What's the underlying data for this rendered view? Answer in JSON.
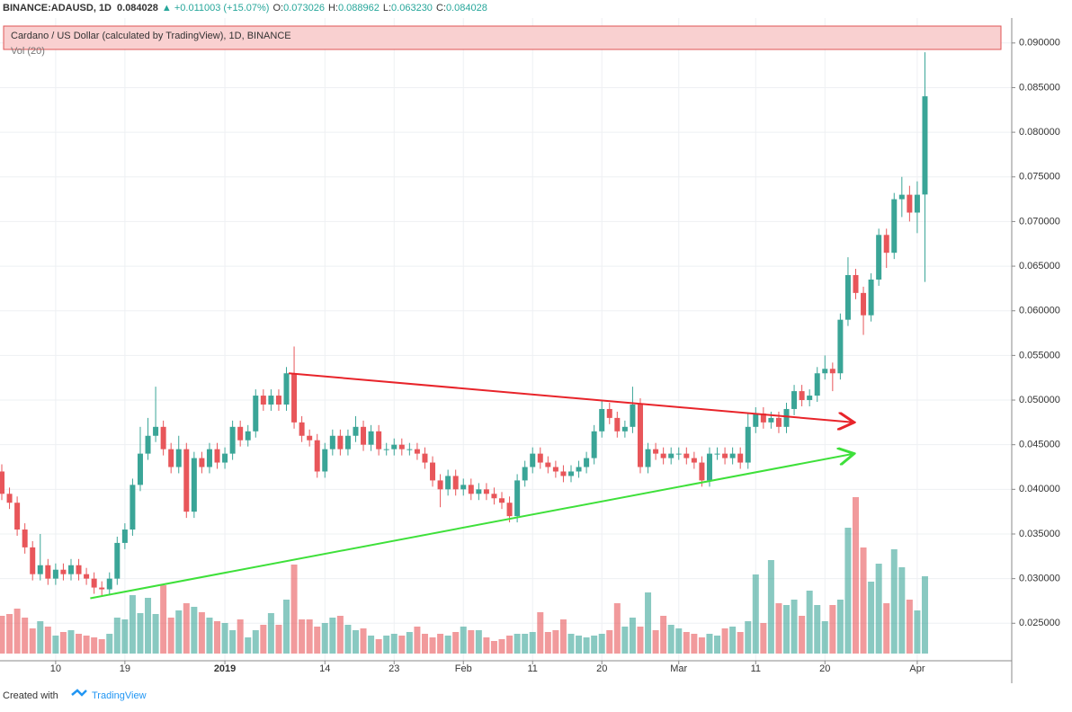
{
  "header": {
    "symbol": "BINANCE:ADAUSD, 1D",
    "last": "0.084028",
    "change": "▲ +0.011003 (+15.07%)",
    "ohlc": [
      {
        "label": "O:",
        "value": "0.073026"
      },
      {
        "label": "H:",
        "value": "0.088962"
      },
      {
        "label": "L:",
        "value": "0.063230"
      },
      {
        "label": "C:",
        "value": "0.084028"
      }
    ]
  },
  "chart_data": {
    "type": "candlestick",
    "title": "Cardano / US Dollar (calculated by TradingView), 1D, BINANCE",
    "volume_label": "Vol (20)",
    "up_color": "#3aa597",
    "down_color": "#e8565a",
    "grid": true,
    "ylim": [
      0.0208,
      0.0928
    ],
    "yticks": [
      {
        "value": 0.025,
        "label": "0.025000"
      },
      {
        "value": 0.03,
        "label": "0.030000"
      },
      {
        "value": 0.035,
        "label": "0.035000"
      },
      {
        "value": 0.04,
        "label": "0.040000"
      },
      {
        "value": 0.045,
        "label": "0.045000"
      },
      {
        "value": 0.05,
        "label": "0.050000"
      },
      {
        "value": 0.055,
        "label": "0.055000"
      },
      {
        "value": 0.06,
        "label": "0.060000"
      },
      {
        "value": 0.065,
        "label": "0.065000"
      },
      {
        "value": 0.07,
        "label": "0.070000"
      },
      {
        "value": 0.075,
        "label": "0.075000"
      },
      {
        "value": 0.08,
        "label": "0.080000"
      },
      {
        "value": 0.085,
        "label": "0.085000"
      },
      {
        "value": 0.09,
        "label": "0.090000"
      }
    ],
    "xticks": [
      {
        "value": 7,
        "label": "10"
      },
      {
        "value": 16,
        "label": "19"
      },
      {
        "value": 29,
        "label": "2019"
      },
      {
        "value": 42,
        "label": "14"
      },
      {
        "value": 51,
        "label": "23"
      },
      {
        "value": 60,
        "label": "Feb"
      },
      {
        "value": 69,
        "label": "11"
      },
      {
        "value": 78,
        "label": "20"
      },
      {
        "value": 88,
        "label": "Mar"
      },
      {
        "value": 98,
        "label": "11"
      },
      {
        "value": 107,
        "label": "20"
      },
      {
        "value": 119,
        "label": "Apr"
      }
    ],
    "open": [
      0.042,
      0.0395,
      0.0385,
      0.0355,
      0.0335,
      0.0305,
      0.0315,
      0.03,
      0.031,
      0.0305,
      0.0315,
      0.0305,
      0.03,
      0.029,
      0.0288,
      0.03,
      0.034,
      0.0355,
      0.0405,
      0.044,
      0.046,
      0.047,
      0.0445,
      0.0425,
      0.0445,
      0.0375,
      0.0435,
      0.0425,
      0.0445,
      0.043,
      0.044,
      0.047,
      0.0455,
      0.0465,
      0.0505,
      0.0495,
      0.0505,
      0.0495,
      0.053,
      0.0475,
      0.046,
      0.0455,
      0.042,
      0.0445,
      0.046,
      0.0445,
      0.046,
      0.047,
      0.045,
      0.0465,
      0.0445,
      0.0445,
      0.045,
      0.0445,
      0.0445,
      0.044,
      0.043,
      0.041,
      0.04,
      0.0415,
      0.04,
      0.0405,
      0.0395,
      0.04,
      0.0395,
      0.039,
      0.0385,
      0.037,
      0.041,
      0.0425,
      0.044,
      0.043,
      0.0425,
      0.042,
      0.0415,
      0.042,
      0.0425,
      0.0435,
      0.0465,
      0.049,
      0.048,
      0.0465,
      0.047,
      0.0495,
      0.0425,
      0.0445,
      0.044,
      0.0435,
      0.044,
      0.044,
      0.0435,
      0.043,
      0.041,
      0.044,
      0.044,
      0.0435,
      0.044,
      0.043,
      0.047,
      0.0485,
      0.0475,
      0.048,
      0.047,
      0.049,
      0.051,
      0.05,
      0.0505,
      0.053,
      0.0535,
      0.053,
      0.059,
      0.064,
      0.062,
      0.0595,
      0.0635,
      0.0685,
      0.0665,
      0.0725,
      0.073,
      0.071,
      0.073026
    ],
    "high": [
      0.0428,
      0.0402,
      0.0392,
      0.0362,
      0.0342,
      0.035,
      0.0322,
      0.0317,
      0.0317,
      0.0322,
      0.0322,
      0.0312,
      0.0307,
      0.0297,
      0.0307,
      0.0347,
      0.0362,
      0.0412,
      0.047,
      0.048,
      0.0515,
      0.0477,
      0.0452,
      0.046,
      0.0452,
      0.0442,
      0.0442,
      0.0452,
      0.0452,
      0.0447,
      0.0477,
      0.0477,
      0.0472,
      0.0512,
      0.0512,
      0.0512,
      0.0512,
      0.0537,
      0.056,
      0.0482,
      0.0467,
      0.0462,
      0.0452,
      0.0467,
      0.0467,
      0.0467,
      0.0482,
      0.0477,
      0.0472,
      0.0472,
      0.0452,
      0.0457,
      0.0457,
      0.0452,
      0.0452,
      0.0447,
      0.0437,
      0.0417,
      0.0422,
      0.0422,
      0.0412,
      0.0412,
      0.0407,
      0.0407,
      0.0402,
      0.0397,
      0.0392,
      0.0417,
      0.0432,
      0.0447,
      0.0447,
      0.0437,
      0.0432,
      0.0427,
      0.0427,
      0.0432,
      0.0442,
      0.0472,
      0.05,
      0.0497,
      0.0487,
      0.0477,
      0.0515,
      0.0502,
      0.0452,
      0.0452,
      0.0447,
      0.0447,
      0.0447,
      0.0447,
      0.0442,
      0.0437,
      0.0447,
      0.0447,
      0.0447,
      0.0447,
      0.0447,
      0.0485,
      0.0492,
      0.0492,
      0.0487,
      0.0487,
      0.0497,
      0.0517,
      0.0517,
      0.0512,
      0.0537,
      0.055,
      0.0542,
      0.0597,
      0.066,
      0.0647,
      0.0627,
      0.0642,
      0.0692,
      0.0692,
      0.0732,
      0.075,
      0.074,
      0.0745,
      0.088962
    ],
    "low": [
      0.0388,
      0.0378,
      0.0348,
      0.0328,
      0.0298,
      0.0298,
      0.0293,
      0.0293,
      0.0298,
      0.0298,
      0.0298,
      0.0293,
      0.0283,
      0.0281,
      0.0281,
      0.0293,
      0.0333,
      0.0348,
      0.0398,
      0.0433,
      0.0453,
      0.0438,
      0.0418,
      0.0418,
      0.0368,
      0.0368,
      0.0418,
      0.0418,
      0.0423,
      0.0423,
      0.0433,
      0.0448,
      0.0448,
      0.0458,
      0.0488,
      0.0488,
      0.0488,
      0.0488,
      0.0468,
      0.0453,
      0.0448,
      0.0413,
      0.0413,
      0.0438,
      0.0438,
      0.0438,
      0.0453,
      0.0443,
      0.0443,
      0.0438,
      0.0438,
      0.0438,
      0.0438,
      0.0438,
      0.0433,
      0.0423,
      0.0403,
      0.038,
      0.0393,
      0.0393,
      0.0393,
      0.0388,
      0.0388,
      0.0388,
      0.0383,
      0.0378,
      0.0363,
      0.0363,
      0.0403,
      0.0418,
      0.0423,
      0.0418,
      0.0413,
      0.0408,
      0.0408,
      0.0413,
      0.0418,
      0.0428,
      0.0458,
      0.0473,
      0.0458,
      0.0458,
      0.0463,
      0.0418,
      0.0418,
      0.0433,
      0.0428,
      0.0428,
      0.0433,
      0.0428,
      0.0423,
      0.0403,
      0.0403,
      0.0433,
      0.0428,
      0.0428,
      0.0423,
      0.0423,
      0.0463,
      0.0468,
      0.0468,
      0.0463,
      0.0463,
      0.0483,
      0.0493,
      0.0493,
      0.0498,
      0.0523,
      0.051,
      0.0523,
      0.0583,
      0.0613,
      0.0573,
      0.0588,
      0.0628,
      0.0648,
      0.0658,
      0.0705,
      0.07,
      0.0687,
      0.06323
    ],
    "close": [
      0.0395,
      0.0385,
      0.0355,
      0.0335,
      0.0305,
      0.0315,
      0.03,
      0.031,
      0.0305,
      0.0315,
      0.0305,
      0.03,
      0.029,
      0.0288,
      0.03,
      0.034,
      0.0355,
      0.0405,
      0.044,
      0.046,
      0.047,
      0.0445,
      0.0425,
      0.0445,
      0.0375,
      0.0435,
      0.0425,
      0.0445,
      0.043,
      0.044,
      0.047,
      0.0455,
      0.0465,
      0.0505,
      0.0495,
      0.0505,
      0.0495,
      0.053,
      0.0475,
      0.046,
      0.0455,
      0.042,
      0.0445,
      0.046,
      0.0445,
      0.046,
      0.047,
      0.045,
      0.0465,
      0.0445,
      0.0445,
      0.045,
      0.0445,
      0.0445,
      0.044,
      0.043,
      0.041,
      0.04,
      0.0415,
      0.04,
      0.0405,
      0.0395,
      0.04,
      0.0395,
      0.039,
      0.0385,
      0.037,
      0.041,
      0.0425,
      0.044,
      0.043,
      0.0425,
      0.042,
      0.0415,
      0.042,
      0.0425,
      0.0435,
      0.0465,
      0.049,
      0.048,
      0.0465,
      0.047,
      0.0495,
      0.0425,
      0.0445,
      0.044,
      0.0435,
      0.044,
      0.044,
      0.0435,
      0.043,
      0.041,
      0.044,
      0.044,
      0.0435,
      0.044,
      0.043,
      0.047,
      0.0485,
      0.0475,
      0.048,
      0.047,
      0.049,
      0.051,
      0.05,
      0.0505,
      0.053,
      0.0535,
      0.053,
      0.059,
      0.064,
      0.062,
      0.0595,
      0.0635,
      0.0685,
      0.0665,
      0.0725,
      0.073,
      0.071,
      0.073,
      0.084028
    ],
    "volume": [
      42,
      44,
      50,
      40,
      28,
      36,
      30,
      20,
      24,
      26,
      22,
      20,
      18,
      16,
      22,
      40,
      38,
      65,
      45,
      62,
      44,
      76,
      40,
      48,
      56,
      52,
      46,
      40,
      36,
      34,
      26,
      38,
      18,
      26,
      32,
      45,
      32,
      60,
      99,
      38,
      38,
      30,
      34,
      40,
      42,
      32,
      26,
      28,
      20,
      16,
      20,
      22,
      20,
      24,
      30,
      22,
      18,
      22,
      20,
      24,
      30,
      26,
      26,
      18,
      14,
      16,
      20,
      22,
      22,
      24,
      46,
      24,
      26,
      38,
      22,
      20,
      18,
      20,
      22,
      26,
      56,
      30,
      40,
      30,
      68,
      26,
      42,
      32,
      28,
      24,
      22,
      18,
      22,
      20,
      28,
      30,
      24,
      36,
      88,
      34,
      104,
      56,
      54,
      60,
      42,
      70,
      54,
      36,
      54,
      60,
      140,
      174,
      118,
      80,
      100,
      56,
      116,
      96,
      60,
      48,
      86
    ],
    "trend_lines": [
      {
        "color": "#e8242a",
        "x": [
          37.3,
          110.8
        ],
        "y": [
          0.053,
          0.0475
        ]
      },
      {
        "color": "#3ee03a",
        "x": [
          11.5,
          110.8
        ],
        "y": [
          0.0278,
          0.044
        ]
      }
    ]
  },
  "footer": {
    "text": "Created with",
    "brand": "TradingView"
  }
}
